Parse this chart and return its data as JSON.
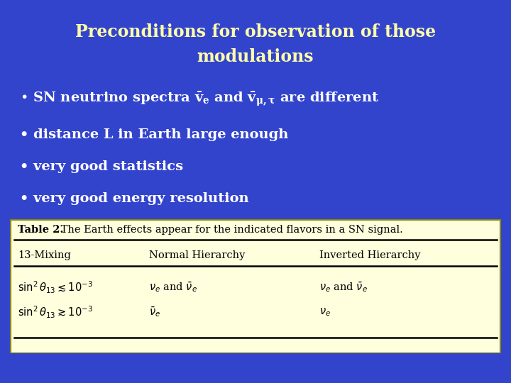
{
  "bg_color": "#3344cc",
  "title_text_line1": "Preconditions for observation of those",
  "title_text_line2": "modulations",
  "title_color": "#ffffaa",
  "bullet_color": "#ffffff",
  "bullets": [
    "SN neutrino spectra $\\mathregular{\\bar{v}_e}$ and $\\mathregular{\\bar{v}_{\\mu,\\tau}}$ are different",
    "distance L in Earth large enough",
    "very good statistics",
    "very good energy resolution"
  ],
  "table_bg": "#ffffdd",
  "table_border_color": "#aaaaaa",
  "table_caption_bold": "Table 2.",
  "table_caption_rest": " The Earth effects appear for the indicated flavors in a SN signal.",
  "table_col_headers": [
    "13-Mixing",
    "Normal Hierarchy",
    "Inverted Hierarchy"
  ],
  "table_rows": [
    [
      "$\\sin^2\\theta_{13} \\lesssim 10^{-3}$",
      "$\\nu_e$ and $\\bar{\\nu}_e$",
      "$\\nu_e$ and $\\bar{\\nu}_e$"
    ],
    [
      "$\\sin^2\\theta_{13} \\gtrsim 10^{-3}$",
      "$\\bar{\\nu}_e$",
      "$\\nu_e$"
    ]
  ],
  "figsize": [
    7.2,
    5.4
  ],
  "dpi": 100,
  "title_fontsize": 17,
  "bullet_fontsize": 14,
  "table_fontsize": 10.5
}
